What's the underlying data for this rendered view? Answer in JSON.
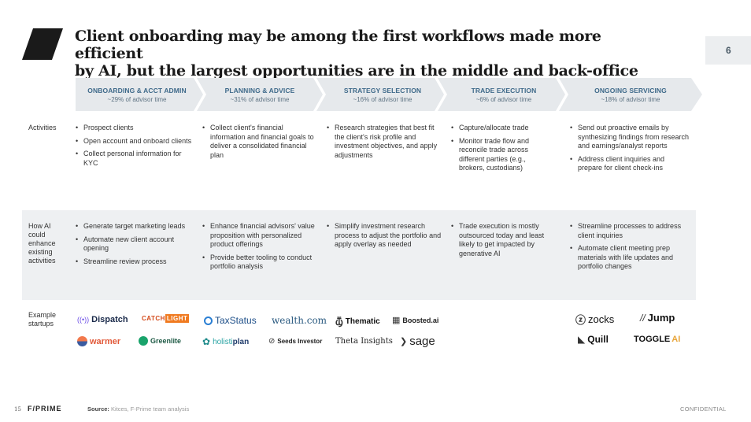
{
  "header": {
    "title_line1": "Client onboarding may be among the first workflows made more efficient",
    "title_line2": "by AI, but the largest opportunities are in the middle and back-office",
    "page_number": "6"
  },
  "colors": {
    "chevron_fill": "#e6e9ec",
    "heading_blue": "#3f6a8a",
    "row_shade": "#eef0f2"
  },
  "stages": [
    {
      "name": "ONBOARDING & ACCT ADMIN",
      "share": "~29% of advisor time"
    },
    {
      "name": "PLANNING & ADVICE",
      "share": "~31% of advisor time"
    },
    {
      "name": "STRATEGY SELECTION",
      "share": "~16% of advisor time"
    },
    {
      "name": "TRADE EXECUTION",
      "share": "~6% of advisor time"
    },
    {
      "name": "ONGOING SERVICING",
      "share": "~18% of advisor time"
    }
  ],
  "activities": {
    "label": "Activities",
    "columns": [
      [
        "Prospect clients",
        "Open account and onboard clients",
        "Collect personal information for KYC"
      ],
      [
        "Collect client's financial information and financial goals to deliver a consolidated financial plan"
      ],
      [
        "Research strategies that best fit the client's risk profile and investment objectives, and apply adjustments"
      ],
      [
        "Capture/allocate trade",
        "Monitor trade flow and reconcile trade across different parties (e.g., brokers, custodians)"
      ],
      [
        "Send out proactive emails by synthesizing findings from research and earnings/analyst reports",
        "Address client inquiries and prepare for client check-ins"
      ]
    ]
  },
  "ai": {
    "label_lines": [
      "How AI",
      "could",
      "enhance",
      "existing",
      "activities"
    ],
    "columns": [
      [
        "Generate target marketing leads",
        "Automate new client account opening",
        "Streamline review process"
      ],
      [
        "Enhance financial advisors' value proposition with personalized product offerings",
        "Provide better tooling to conduct portfolio analysis"
      ],
      [
        "Simplify investment research process to adjust the portfolio and apply overlay as needed"
      ],
      [
        "Trade execution is mostly outsourced today and least likely to get impacted by generative AI"
      ],
      [
        "Streamline processes to address client inquiries",
        "Automate client meeting prep materials with life updates and portfolio changes"
      ]
    ]
  },
  "startups": {
    "label_lines": [
      "Example",
      "startups"
    ],
    "items": {
      "dispatch": "Dispatch",
      "catchlight_a": "CATCH",
      "catchlight_b": "LIGHT",
      "taxstatus": "TaxStatus",
      "wealth": "wealth.com",
      "thematic": "Thematic",
      "boosted": "Boosted.ai",
      "zocks": "zocks",
      "jump": "Jump",
      "warmer": "warmer",
      "greenlite": "Greenlite",
      "holisti_a": "holisti",
      "holisti_b": "plan",
      "seeds": "Seeds Investor",
      "theta": "Theta Insights",
      "sage": "sage",
      "quill": "Quill",
      "toggle_a": "TOGGLE",
      "toggle_b": "AI"
    }
  },
  "footer": {
    "page": "15",
    "brand": "F/PRIME",
    "source_label": "Source:",
    "source_text": "Kitces, F-Prime team analysis",
    "confidential": "CONFIDENTIAL"
  }
}
